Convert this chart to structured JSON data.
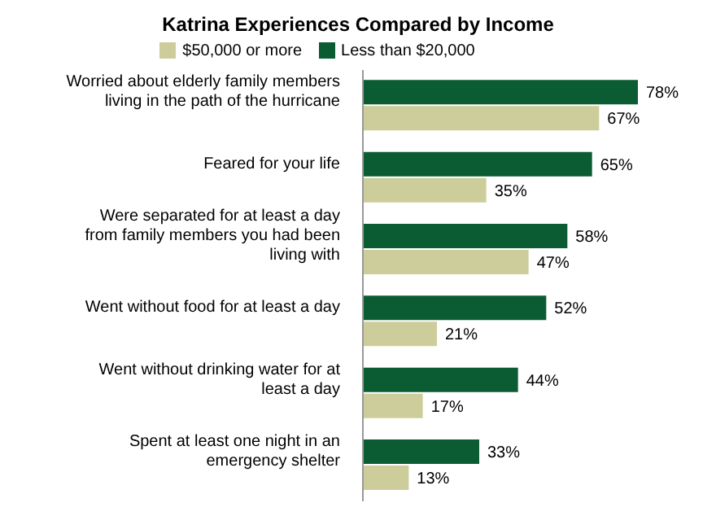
{
  "chart_data": {
    "type": "bar",
    "orientation": "horizontal",
    "title": "Katrina Experiences Compared by Income",
    "categories": [
      "Worried about elderly family members living in the path of the hurricane",
      "Feared for your life",
      "Were separated for at least a day from family members you had been living with",
      "Went without food for at least a day",
      "Went without drinking water for at least a day",
      "Spent at least one night in an emergency shelter"
    ],
    "series": [
      {
        "name": "Less than $20,000",
        "color": "#0b5b33",
        "values": [
          78,
          65,
          58,
          52,
          44,
          33
        ],
        "value_labels": [
          "78%",
          "65%",
          "58%",
          "52%",
          "44%",
          "33%"
        ]
      },
      {
        "name": "$50,000 or more",
        "color": "#cdcd9b",
        "values": [
          67,
          35,
          47,
          21,
          17,
          13
        ],
        "value_labels": [
          "67%",
          "35%",
          "47%",
          "21%",
          "17%",
          "13%"
        ]
      }
    ],
    "legend": "top",
    "grid": false
  }
}
